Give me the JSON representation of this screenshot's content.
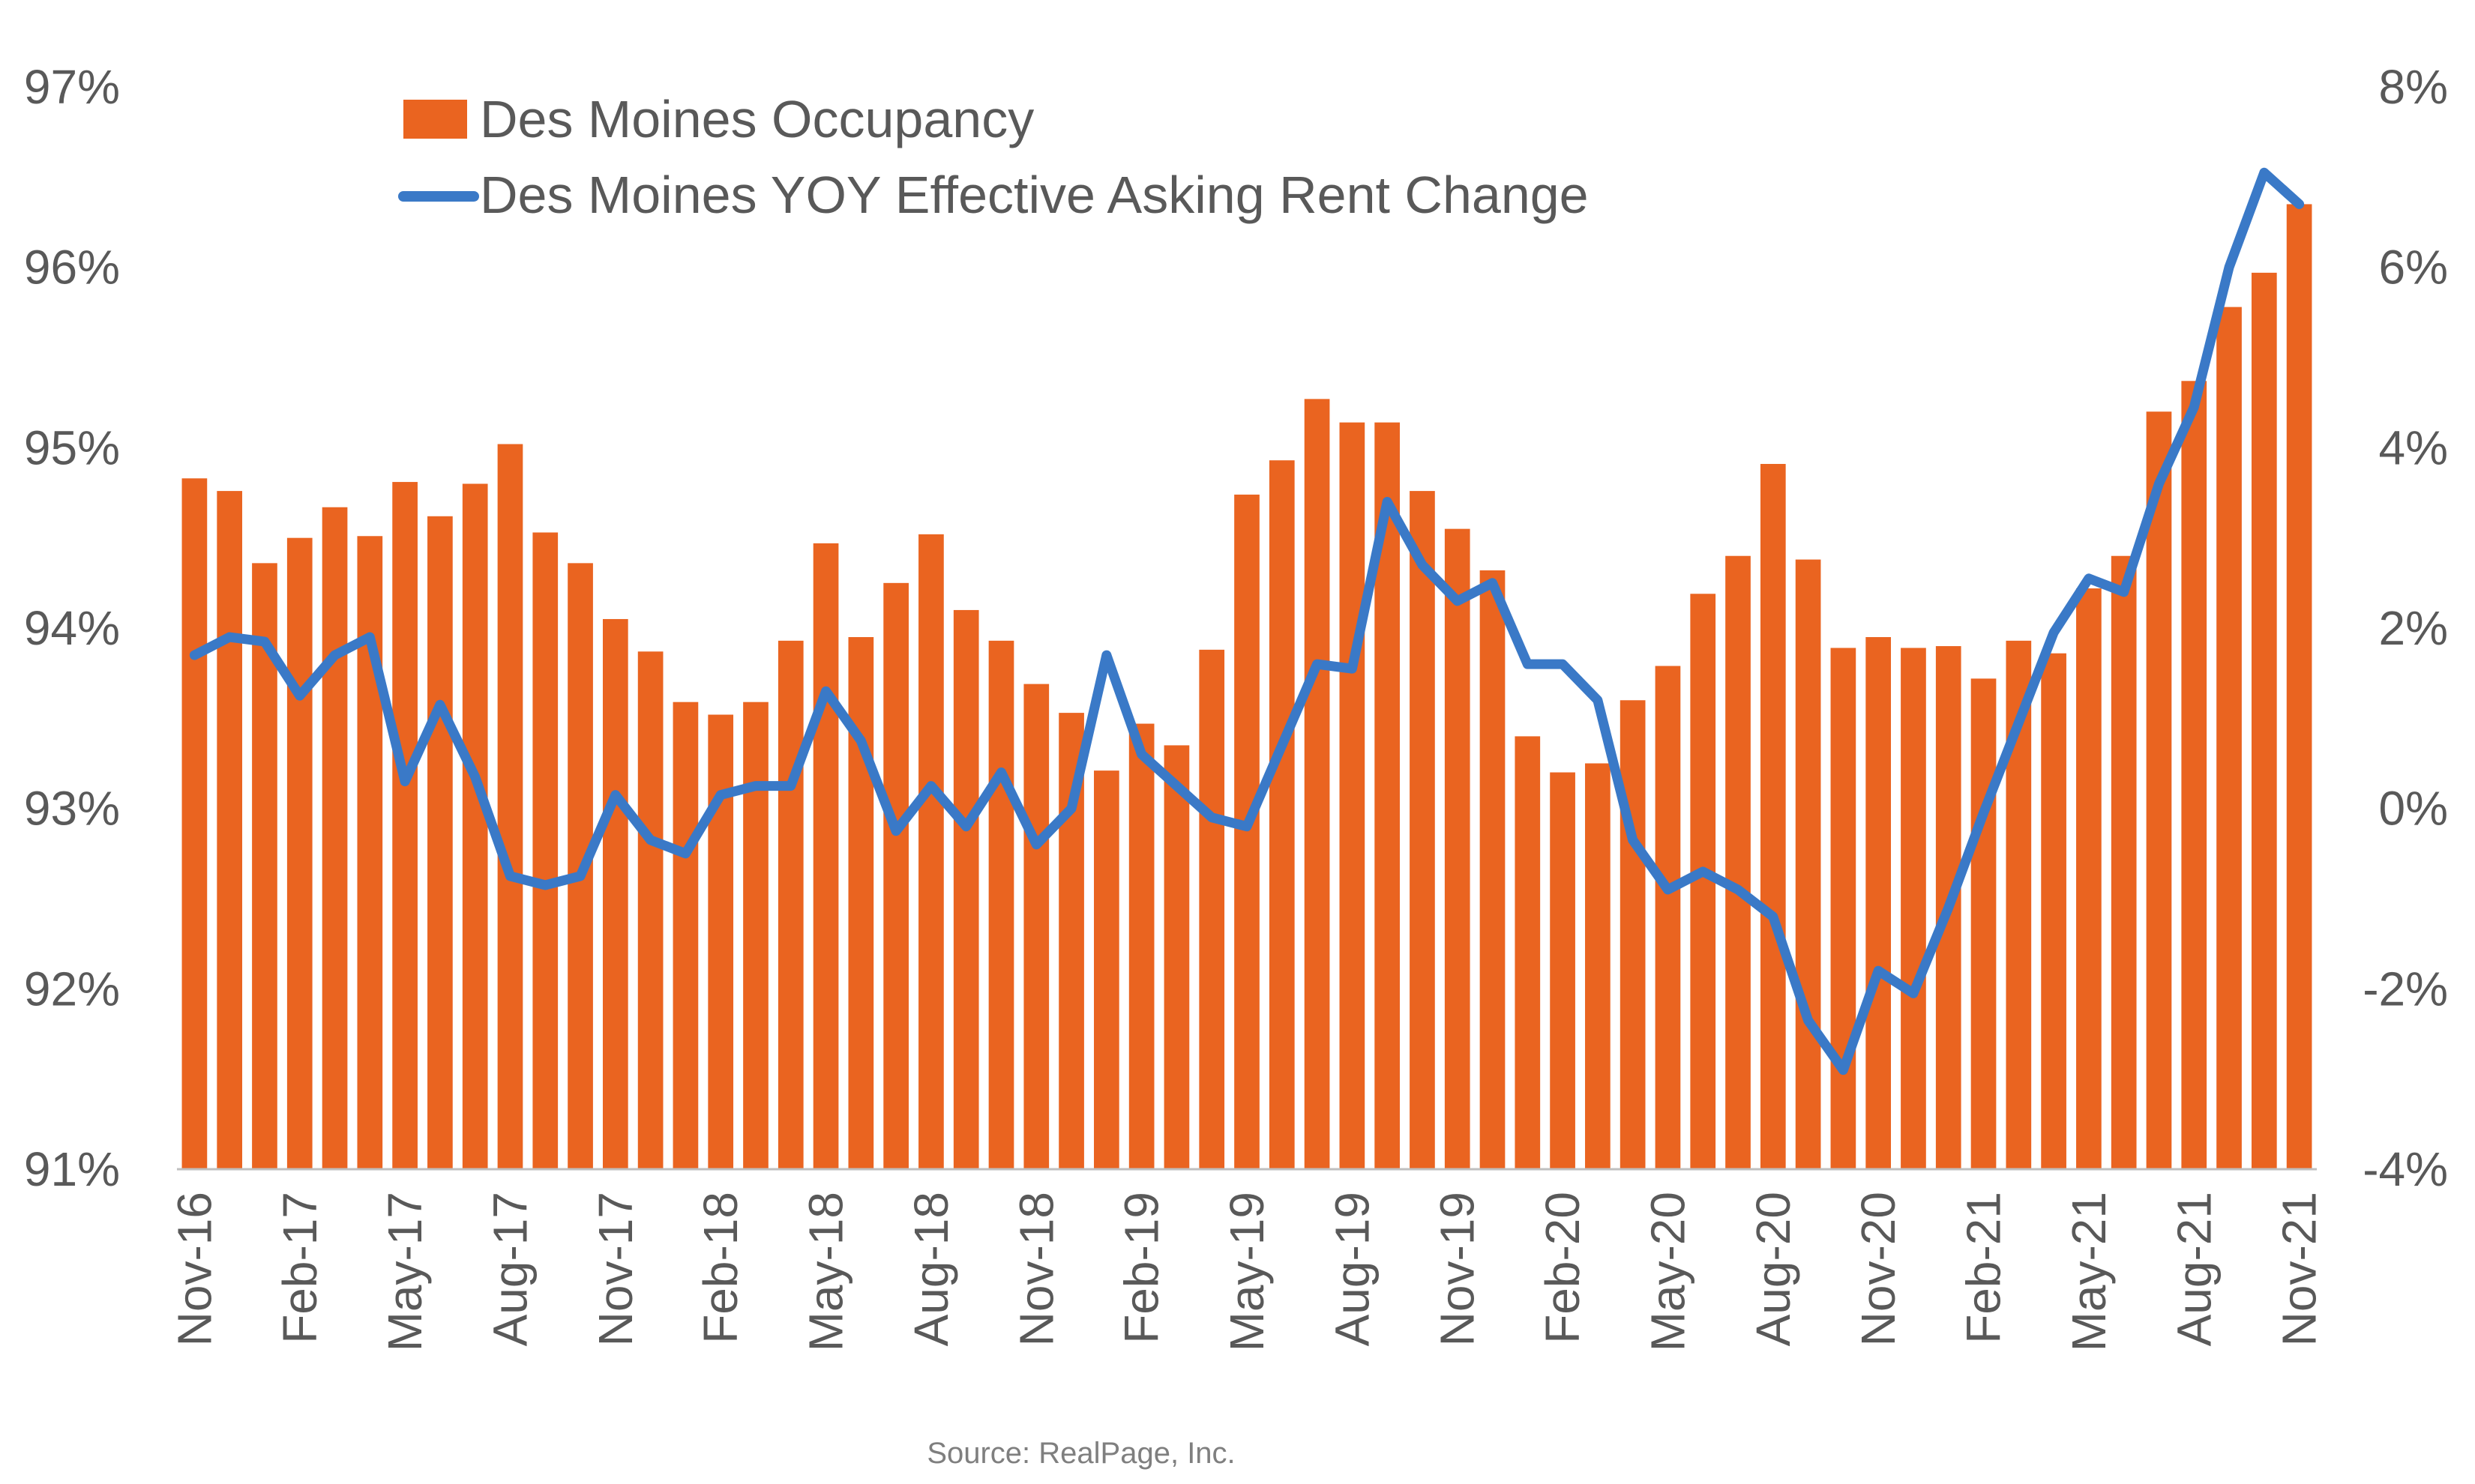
{
  "source_note": "Source: RealPage, Inc.",
  "colors": {
    "bar": "#EA6420",
    "line": "#3A79C7",
    "text": "#595959",
    "axis": "#BFBFBF"
  },
  "chart_data": {
    "type": "bar+line",
    "categories": [
      "Nov-16",
      "Dec-16",
      "Jan-17",
      "Feb-17",
      "Mar-17",
      "Apr-17",
      "May-17",
      "Jun-17",
      "Jul-17",
      "Aug-17",
      "Sep-17",
      "Oct-17",
      "Nov-17",
      "Dec-17",
      "Jan-18",
      "Feb-18",
      "Mar-18",
      "Apr-18",
      "May-18",
      "Jun-18",
      "Jul-18",
      "Aug-18",
      "Sep-18",
      "Oct-18",
      "Nov-18",
      "Dec-18",
      "Jan-19",
      "Feb-19",
      "Mar-19",
      "Apr-19",
      "May-19",
      "Jun-19",
      "Jul-19",
      "Aug-19",
      "Sep-19",
      "Oct-19",
      "Nov-19",
      "Dec-19",
      "Jan-20",
      "Feb-20",
      "Mar-20",
      "Apr-20",
      "May-20",
      "Jun-20",
      "Jul-20",
      "Aug-20",
      "Sep-20",
      "Oct-20",
      "Nov-20",
      "Dec-20",
      "Jan-21",
      "Feb-21",
      "Mar-21",
      "Apr-21",
      "May-21",
      "Jun-21",
      "Jul-21",
      "Aug-21",
      "Sep-21",
      "Oct-21",
      "Nov-21"
    ],
    "x_tick_labels": [
      "Nov-16",
      "Feb-17",
      "May-17",
      "Aug-17",
      "Nov-17",
      "Feb-18",
      "May-18",
      "Aug-18",
      "Nov-18",
      "Feb-19",
      "May-19",
      "Aug-19",
      "Nov-19",
      "Feb-20",
      "May-20",
      "Aug-20",
      "Nov-20",
      "Feb-21",
      "May-21",
      "Aug-21",
      "Nov-21"
    ],
    "series": [
      {
        "name": "Des Moines Occupancy",
        "type": "bar",
        "axis": "left",
        "values": [
          94.83,
          94.76,
          94.36,
          94.5,
          94.67,
          94.51,
          94.81,
          94.62,
          94.8,
          95.02,
          94.53,
          94.36,
          94.05,
          93.87,
          93.59,
          93.52,
          93.59,
          93.93,
          94.47,
          93.95,
          94.25,
          94.52,
          94.1,
          93.93,
          93.69,
          93.53,
          93.21,
          93.47,
          93.35,
          93.88,
          94.74,
          94.93,
          95.27,
          95.14,
          95.14,
          94.76,
          94.55,
          94.32,
          93.4,
          93.2,
          93.25,
          93.6,
          93.79,
          94.19,
          94.4,
          94.91,
          94.38,
          93.89,
          93.95,
          93.89,
          93.9,
          93.72,
          93.93,
          93.86,
          94.22,
          94.4,
          95.2,
          95.37,
          95.78,
          95.97,
          96.35
        ]
      },
      {
        "name": "Des Moines YOY Effective Asking Rent Change",
        "type": "line",
        "axis": "right",
        "values": [
          1.7,
          1.9,
          1.85,
          1.25,
          1.7,
          1.9,
          0.3,
          1.15,
          0.35,
          -0.75,
          -0.85,
          -0.75,
          0.15,
          -0.35,
          -0.5,
          0.15,
          0.25,
          0.25,
          1.3,
          0.75,
          -0.25,
          0.25,
          -0.2,
          0.4,
          -0.4,
          0,
          1.7,
          0.6,
          0.25,
          -0.1,
          -0.2,
          0.7,
          1.6,
          1.55,
          3.4,
          2.7,
          2.3,
          2.5,
          1.6,
          1.6,
          1.2,
          -0.35,
          -0.9,
          -0.7,
          -0.9,
          -1.2,
          -2.35,
          -2.9,
          -1.8,
          -2.05,
          -1.1,
          -0.05,
          0.95,
          1.95,
          2.55,
          2.4,
          3.6,
          4.45,
          6,
          7.05,
          6.7
        ]
      }
    ],
    "y_left": {
      "range": [
        91,
        97
      ],
      "ticks": [
        "91%",
        "92%",
        "93%",
        "94%",
        "95%",
        "96%",
        "97%"
      ]
    },
    "y_right": {
      "range": [
        -4,
        8
      ],
      "ticks": [
        "-4%",
        "-2%",
        "0%",
        "2%",
        "4%",
        "6%",
        "8%"
      ]
    },
    "legend_position": "top-left",
    "grid": false
  }
}
